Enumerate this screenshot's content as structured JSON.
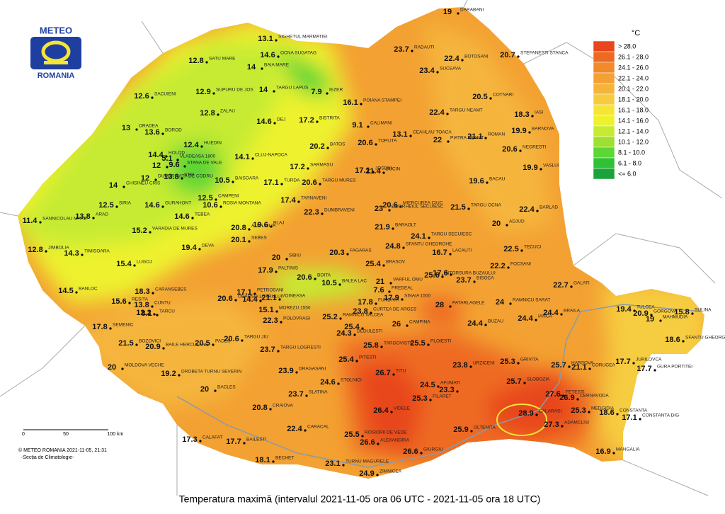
{
  "logo": {
    "line1": "METEO",
    "line2": "ROMANIA"
  },
  "legend": {
    "unit": "°C",
    "items": [
      {
        "label": "> 28.0",
        "color": "#e8461e"
      },
      {
        "label": "26.1 - 28.0",
        "color": "#ee6a22"
      },
      {
        "label": "24.1 - 26.0",
        "color": "#f08a2a"
      },
      {
        "label": "22.1 - 24.0",
        "color": "#f3a132"
      },
      {
        "label": "20.1 - 22.0",
        "color": "#f5b53c"
      },
      {
        "label": "18.1 - 20.0",
        "color": "#f6cc3f"
      },
      {
        "label": "16.1 - 18.0",
        "color": "#f5e535"
      },
      {
        "label": "14.1 - 16.0",
        "color": "#eef22e"
      },
      {
        "label": "12.1 - 14.0",
        "color": "#c6eb30"
      },
      {
        "label": "10.1 - 12.0",
        "color": "#9ee032"
      },
      {
        "label": "8.1 - 10.0",
        "color": "#5dd636"
      },
      {
        "label": "6.1 - 8.0",
        "color": "#30c236"
      },
      {
        "label": "<= 6.0",
        "color": "#1aa33a"
      }
    ]
  },
  "stations": [
    {
      "name": "DARABANI",
      "value": 19
    },
    {
      "name": "SIGHETUL MARMATIEI",
      "value": 13.1
    },
    {
      "name": "OCNA SUGATAG",
      "value": 14.6
    },
    {
      "name": "RADAUTI",
      "value": 23.7
    },
    {
      "name": "BOTOSANI",
      "value": 22.4
    },
    {
      "name": "STEFANESTI STANCA",
      "value": 20.7
    },
    {
      "name": "SATU MARE",
      "value": 12.8
    },
    {
      "name": "BAIA MARE",
      "value": 14
    },
    {
      "name": "IEZER",
      "value": 7.9
    },
    {
      "name": "SUCEAVA",
      "value": 23.4
    },
    {
      "name": "SUPURU DE JOS",
      "value": 12.9
    },
    {
      "name": "TARGU LAPUS",
      "value": 14
    },
    {
      "name": "SACUIENI",
      "value": 12.6
    },
    {
      "name": "POIANA STAMPEI",
      "value": 16.1
    },
    {
      "name": "COTNARI",
      "value": 20.5
    },
    {
      "name": "TARGU NEAMT",
      "value": 22.4
    },
    {
      "name": "IASI",
      "value": 18.3
    },
    {
      "name": "ZALAU",
      "value": 12.8
    },
    {
      "name": "DEJ",
      "value": 14.6
    },
    {
      "name": "BISTRITA",
      "value": 17.2
    },
    {
      "name": "CALIMANI",
      "value": 9.1
    },
    {
      "name": "CEAHLAU TOACA",
      "value": 13.1
    },
    {
      "name": "ORADEA",
      "value": 13
    },
    {
      "name": "BOROD",
      "value": 13.6
    },
    {
      "name": "PIATRA NEAMT",
      "value": 22
    },
    {
      "name": "ROMAN",
      "value": 21.1
    },
    {
      "name": "BARNOVA",
      "value": 19.9
    },
    {
      "name": "HUEDIN",
      "value": 12.4
    },
    {
      "name": "BATOS",
      "value": 20.2
    },
    {
      "name": "TOPLITA",
      "value": 20.6
    },
    {
      "name": "NEGRESTI",
      "value": 20.6
    },
    {
      "name": "HOLOD",
      "value": 14.4
    },
    {
      "name": "VLADEASA 1800",
      "value": 5.1
    },
    {
      "name": "CLUJ-NAPOCA",
      "value": 14.1
    },
    {
      "value": 12
    },
    {
      "name": "STANA DE VALE",
      "value": 9.6
    },
    {
      "name": "SARMASU",
      "value": 17.2
    },
    {
      "name": "JOSENI",
      "value": 17.1
    },
    {
      "name": "BUCIN",
      "value": 21.4
    },
    {
      "name": "VASLUI",
      "value": 19.9
    },
    {
      "name": "CHISINEU CRIS",
      "value": 14
    },
    {
      "name": "STEI",
      "value": 13.8
    },
    {
      "name": "BAISOARA",
      "value": 10.5
    },
    {
      "name": "TURDA",
      "value": 17.1
    },
    {
      "name": "TARGU MURES",
      "value": 20.6
    },
    {
      "name": "BACAU",
      "value": 19.6
    },
    {
      "name": "DUMBRAVITA DE CODRU",
      "value": 12
    },
    {
      "name": "CAMPENI",
      "value": 12.5
    },
    {
      "name": "ROSIA MONTANA",
      "value": 10.6
    },
    {
      "name": "TARNAVENI",
      "value": 17.4
    },
    {
      "name": "MIERCUREA CIUC",
      "value": 20.6
    },
    {
      "name": "ODORHEIUL SECUIESC",
      "value": 23
    },
    {
      "name": "TARGU OCNA",
      "value": 21.5
    },
    {
      "name": "BARLAD",
      "value": 22.4
    },
    {
      "name": "SIRIA",
      "value": 12.5
    },
    {
      "name": "GURAHONT",
      "value": 14.6
    },
    {
      "name": "SANNICOLAU MARE",
      "value": 11.4
    },
    {
      "name": "ARAD",
      "value": 13.8
    },
    {
      "name": "TEBEA",
      "value": 14.6
    },
    {
      "name": "DUMBRAVENI",
      "value": 22.3
    },
    {
      "name": "BLAJ",
      "value": 19.6
    },
    {
      "name": "ALBA IULIA",
      "value": 20.8
    },
    {
      "name": "ADJUD",
      "value": 20
    },
    {
      "name": "VARADIA DE MURES",
      "value": 15.2
    },
    {
      "name": "SEBES",
      "value": 20.1
    },
    {
      "name": "BARAOLT",
      "value": 21.9
    },
    {
      "name": "TARGU SECUIESC",
      "value": 24.1
    },
    {
      "name": "SFANTU GHEORGHE",
      "value": 24.8
    },
    {
      "name": "JIMBOLIA",
      "value": 12.8
    },
    {
      "name": "TIMISOARA",
      "value": 14.3
    },
    {
      "name": "DEVA",
      "value": 19.4
    },
    {
      "name": "SIBIU",
      "value": 20
    },
    {
      "name": "FAGARAS",
      "value": 20.3
    },
    {
      "name": "LACAUTI",
      "value": 16.7
    },
    {
      "name": "TECUCI",
      "value": 22.5
    },
    {
      "name": "LUGOJ",
      "value": 15.4
    },
    {
      "name": "BRASOV",
      "value": 25.4
    },
    {
      "name": "FOCSANI",
      "value": 22.2
    },
    {
      "name": "PALTINIS",
      "value": 17.9
    },
    {
      "name": "INTORSURA BUZAULUI",
      "value": 25.6
    },
    {
      "value": 17.6
    },
    {
      "name": "BISOCA",
      "value": 23.7
    },
    {
      "name": "BOITA",
      "value": 20.6
    },
    {
      "name": "BALEA LAC",
      "value": 10.5
    },
    {
      "name": "VARFUL OMU",
      "value": 21
    },
    {
      "name": "BANLOC",
      "value": 14.5
    },
    {
      "name": "CARANSEBES",
      "value": 18.3
    },
    {
      "name": "PETROSANI",
      "value": 17.1
    },
    {
      "name": "OBARSIA LOTRULUI",
      "value": 20.6
    },
    {
      "value": 14.4
    },
    {
      "name": "VOINEASA",
      "value": 21.1
    },
    {
      "name": "GALATI",
      "value": 22.7
    },
    {
      "name": "PREDEAL",
      "value": 7.6
    },
    {
      "name": "RESITA",
      "value": 15.6
    },
    {
      "name": "CUNTU",
      "value": 13.8
    },
    {
      "name": "TARCU",
      "value": 8.1
    },
    {
      "name": "FUNDATA",
      "value": 17.8
    },
    {
      "name": "SINAIA 1500",
      "value": 17.9
    },
    {
      "name": "PATARLAGELE",
      "value": 28
    },
    {
      "name": "RAMNICU SARAT",
      "value": 24
    },
    {
      "value": 12.2
    },
    {
      "name": "MOREZU 1550",
      "value": 15.1
    },
    {
      "name": "CURTEA DE ARGES",
      "value": 23.8
    },
    {
      "name": "CAMPINA",
      "value": 26
    },
    {
      "name": "IANCA",
      "value": 24.4
    },
    {
      "name": "BRAILA",
      "value": 24.4
    },
    {
      "name": "TULCEA",
      "value": 19.4
    },
    {
      "name": "GORGOVA",
      "value": 20.9
    },
    {
      "name": "MAHMUDIA",
      "value": 19
    },
    {
      "name": "SULINA",
      "value": 15.8
    },
    {
      "name": "POLOVRAGI",
      "value": 22.3
    },
    {
      "name": "RAMNICU VALCEA",
      "value": 25.2
    },
    {
      "value": 25.4
    },
    {
      "name": "DEDULESTI",
      "value": 24.3
    },
    {
      "name": "BUZAU",
      "value": 24.4
    },
    {
      "name": "SEMENIC",
      "value": 17.8
    },
    {
      "name": "TARGU JIU",
      "value": 20.6
    },
    {
      "name": "PADES",
      "value": 20.5
    },
    {
      "name": "TARGOVISTE",
      "value": 25.8
    },
    {
      "name": "PLOIESTI",
      "value": 25.5
    },
    {
      "name": "SFANTU GHEORGHE",
      "value": 18.6
    },
    {
      "name": "BOZOVICI",
      "value": 21.5
    },
    {
      "name": "BAILE HERCULANE",
      "value": 20.9
    },
    {
      "name": "TARGU LOGRESTI",
      "value": 23.7
    },
    {
      "name": "PITESTI",
      "value": 25.4
    },
    {
      "name": "URZICENI",
      "value": 23.8
    },
    {
      "name": "GRIVITA",
      "value": 25.3
    },
    {
      "name": "HARSOVA",
      "value": 25.7
    },
    {
      "name": "CORUGEA",
      "value": 21.1
    },
    {
      "name": "JURILOVCA",
      "value": 17.7
    },
    {
      "name": "GURA PORTITEI",
      "value": 17.7
    },
    {
      "name": "MOLDOVA VECHE",
      "value": 20
    },
    {
      "name": "DRAGASANI",
      "value": 23.9
    },
    {
      "name": "TITU",
      "value": 26.7
    },
    {
      "name": "DROBETA TURNU SEVERIN",
      "value": 19.2
    },
    {
      "name": "STOLNICI",
      "value": 24.6
    },
    {
      "name": "AFUMATI",
      "value": 24.5
    },
    {
      "value": 23.3
    },
    {
      "name": "SLOBOZIA",
      "value": 25.7
    },
    {
      "name": "BACLES",
      "value": 20
    },
    {
      "name": "SLATINA",
      "value": 23.7
    },
    {
      "name": "FETESTI",
      "value": 27.6
    },
    {
      "name": "CERNAVODA",
      "value": 26.9
    },
    {
      "name": "FILARET",
      "value": 25.3
    },
    {
      "name": "MEDGIDIA",
      "value": 25.3
    },
    {
      "name": "CRAIOVA",
      "value": 20.8
    },
    {
      "name": "VIDELE",
      "value": 26.4
    },
    {
      "name": "CALARASI",
      "value": 28.9
    },
    {
      "name": "CONSTANTA",
      "value": 18.6
    },
    {
      "name": "CONSTANTA DIG",
      "value": 17.1
    },
    {
      "name": "ADAMCLISI",
      "value": 27.3
    },
    {
      "name": "CARACAL",
      "value": 22.4
    },
    {
      "name": "ROSIORII DE VEDE",
      "value": 25.5
    },
    {
      "name": "OLTENITA",
      "value": 25.9
    },
    {
      "name": "CALAFAT",
      "value": 17.3
    },
    {
      "name": "BAILESTI",
      "value": 17.7
    },
    {
      "name": "ALEXANDRIA",
      "value": 26.6
    },
    {
      "name": "GIURGIU",
      "value": 26.6
    },
    {
      "name": "MANGALIA",
      "value": 16.9
    },
    {
      "name": "BECHET",
      "value": 18.1
    },
    {
      "name": "TURNU MAGURELE",
      "value": 23.1
    },
    {
      "name": "ZIMNICEA",
      "value": 24.9
    }
  ],
  "scale": {
    "labels": [
      "0",
      "50",
      "100 km"
    ]
  },
  "credits": [
    "© METEO ROMANIA 2021-11-05, 21:31",
    "-Secția de Climatologie-"
  ],
  "title": "Temperatura maximă (intervalul 2021-11-05 ora 06 UTC - 2021-11-05 ora 18 UTC)"
}
